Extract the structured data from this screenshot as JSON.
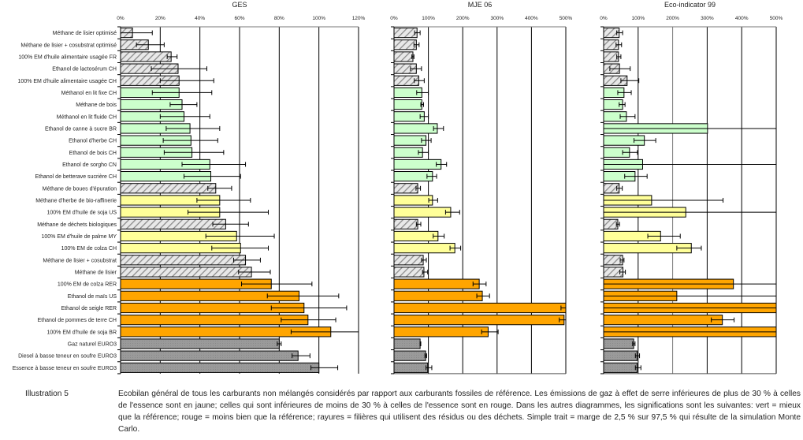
{
  "colors": {
    "hatched": "#d9d9d9",
    "green": "#ccffcc",
    "yellow": "#ffff99",
    "orange": "#ffa500",
    "gray": "#999999"
  },
  "chart_data": {
    "type": "bar",
    "orientation": "horizontal",
    "categories": [
      "Méthane de lisier optimisé",
      "Méthane de lisier + cosubstrat optimisé",
      "100% EM d'huile alimentaire usagée FR",
      "Ethanol de lactosérum CH",
      "100% EM d'huile alimentaire usagée CH",
      "Méthanol en lit fixe CH",
      "Méthane de bois",
      "Méthanol en lit fluide CH",
      "Ethanol de canne à sucre BR",
      "Ethanol d'herbe CH",
      "Ethanol de bois CH",
      "Ethanol de sorgho CN",
      "Ethanol de betterave sucrière CH",
      "Méthane de boues d'épuration",
      "Méthane d'herbe de bio-raffinerie",
      "100% EM d'huile de soja US",
      "Méthane de déchets biologiques",
      "100% EM d'huile de palme MY",
      "100% EM de colza CH",
      "Méthane de lisier + cosubstrat",
      "Méthane de lisier",
      "100% EM de colza RER",
      "Ethanol de maïs US",
      "Ethanol de seigle RER",
      "Ethanol de pommes de terre CH",
      "100% EM d'huile de soja BR",
      "Gaz naturel EURO3",
      "Diesel à basse teneur en soufre EURO3",
      "Essence à basse teneur en soufre EURO3"
    ],
    "styles": [
      "hatched",
      "hatched",
      "hatched",
      "hatched",
      "hatched",
      "green",
      "green",
      "green",
      "green",
      "green",
      "green",
      "green",
      "green",
      "hatched",
      "yellow",
      "yellow",
      "hatched",
      "yellow",
      "yellow",
      "hatched",
      "hatched",
      "orange",
      "orange",
      "orange",
      "orange",
      "orange",
      "gray",
      "gray",
      "gray"
    ],
    "panels": [
      {
        "title": "GES",
        "xlim": [
          0,
          120
        ],
        "ticks": [
          "0%",
          "20%",
          "40%",
          "60%",
          "80%",
          "100%",
          "120%"
        ],
        "tick_values": [
          0,
          20,
          40,
          60,
          80,
          100,
          120
        ],
        "values": [
          6,
          14,
          25.5,
          29,
          29.5,
          29.5,
          31,
          32,
          35,
          35.5,
          36,
          45,
          45.5,
          48,
          50,
          50,
          53,
          58.5,
          60.5,
          63,
          66,
          76,
          90,
          92.5,
          94.5,
          106,
          80,
          89.5,
          100
        ],
        "err_low": [
          0,
          8,
          23.5,
          15.5,
          20,
          16,
          25,
          20,
          23,
          21.5,
          22,
          31,
          32,
          44,
          38.5,
          34,
          46.5,
          43,
          46,
          57,
          59.5,
          61,
          74,
          76,
          81,
          86,
          79,
          86.5,
          96
        ],
        "err_high": [
          16,
          22,
          28.5,
          43.5,
          47,
          46,
          38.5,
          45,
          50,
          49,
          52,
          63,
          60.5,
          56,
          65.5,
          74.5,
          64.5,
          77.5,
          74.5,
          70.5,
          75.5,
          96.5,
          110,
          114,
          108.5,
          120,
          81,
          95.5,
          109.5
        ]
      },
      {
        "title": "MJE 06",
        "xlim": [
          0,
          500
        ],
        "ticks": [
          "0%",
          "100%",
          "200%",
          "300%",
          "400%",
          "500%"
        ],
        "tick_values": [
          0,
          100,
          200,
          300,
          400,
          500
        ],
        "values": [
          67,
          65,
          55,
          65,
          72,
          81,
          81,
          88,
          126,
          93,
          83,
          137,
          112,
          69,
          112,
          165,
          69,
          128,
          177,
          85,
          87,
          248,
          257,
          500,
          495,
          274,
          76,
          92,
          98
        ],
        "err_low": [
          60,
          58,
          52,
          48,
          59,
          66,
          78,
          76,
          115,
          80,
          71,
          123,
          96,
          64,
          101,
          150,
          65,
          114,
          163,
          80,
          83,
          230,
          241,
          486,
          481,
          255,
          76,
          90,
          93
        ],
        "err_high": [
          76,
          73,
          58,
          80,
          88,
          100,
          86,
          100,
          144,
          108,
          100,
          153,
          124,
          77,
          127,
          191,
          78,
          146,
          194,
          94,
          98,
          268,
          278,
          505,
          505,
          303,
          78,
          95,
          110
        ]
      },
      {
        "title": "Eco-indicator 99",
        "xlim": [
          0,
          500
        ],
        "ticks": [
          "0%",
          "100%",
          "200%",
          "300%",
          "400%",
          "500%"
        ],
        "tick_values": [
          0,
          100,
          200,
          300,
          400,
          500
        ],
        "values": [
          45,
          43,
          43,
          46,
          68,
          59,
          55,
          66,
          301,
          118,
          75,
          113,
          91,
          45,
          139,
          238,
          41,
          165,
          254,
          55,
          56,
          376,
          212,
          500,
          344,
          500,
          87,
          97,
          97
        ],
        "err_low": [
          38,
          36,
          38,
          18,
          50,
          41,
          45,
          48,
          0,
          88,
          55,
          0,
          61,
          38,
          0,
          0,
          37,
          128,
          212,
          48,
          47,
          0,
          0,
          0,
          312,
          0,
          84,
          92,
          92
        ],
        "err_high": [
          55,
          52,
          50,
          77,
          102,
          80,
          62,
          91,
          500,
          151,
          98,
          500,
          126,
          54,
          346,
          500,
          46,
          222,
          283,
          59,
          63,
          500,
          500,
          500,
          378,
          500,
          91,
          104,
          108
        ]
      }
    ]
  },
  "caption": {
    "label": "Illustration 5",
    "text": "Ecobilan général de tous les carburants non mélangés considérés par rapport aux carburants fossiles de référence. Les émissions de gaz à effet de serre inférieures de plus de 30 % à celles de l'essence sont en jaune; celles qui sont inférieures de moins de 30 % à celles de l'essence sont en rouge. Dans les autres diagrammes, les significations sont les suivantes: vert = mieux que la référence; rouge = moins bien que la référence; rayures = filières qui utilisent des résidus ou des déchets. Simple trait = marge de 2,5 % sur 97,5 % qui résulte de la simulation Monte Carlo."
  }
}
